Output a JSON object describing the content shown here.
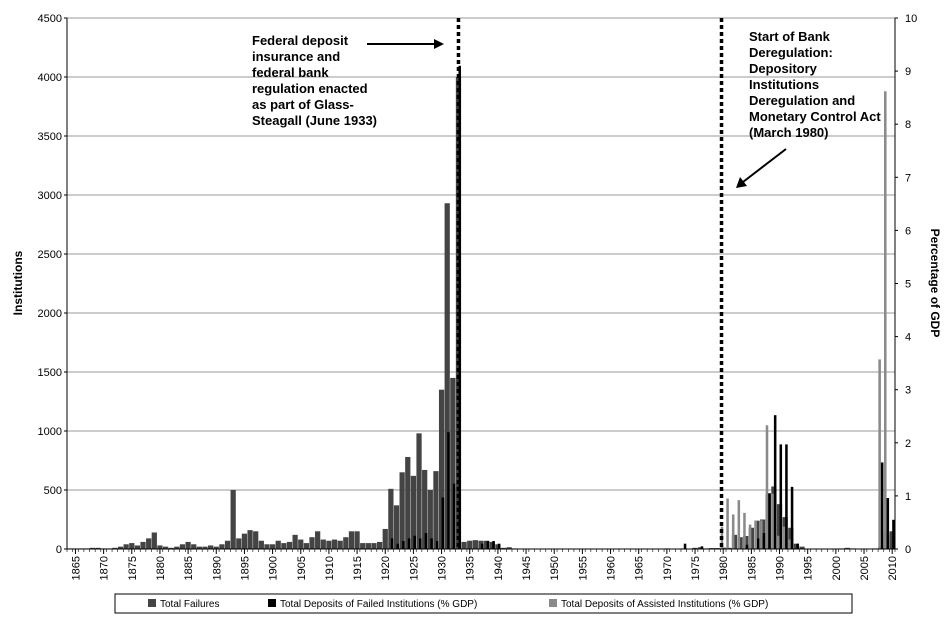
{
  "chart_data": {
    "type": "bar",
    "title": "",
    "ylabel_left": "Institutions",
    "ylabel_right": "Percentage of GDP",
    "x_range": [
      1864,
      2011
    ],
    "y_left_range": [
      0,
      4500
    ],
    "y_right_range": [
      0,
      10
    ],
    "y_left_ticks": [
      "0",
      "500",
      "1000",
      "1500",
      "2000",
      "2500",
      "3000",
      "3500",
      "4000",
      "4500"
    ],
    "y_right_ticks": [
      "0",
      "1",
      "2",
      "3",
      "4",
      "5",
      "6",
      "7",
      "8",
      "9",
      "10"
    ],
    "x_ticks": [
      "1865",
      "1870",
      "1875",
      "1880",
      "1885",
      "1890",
      "1895",
      "1900",
      "1905",
      "1910",
      "1915",
      "1920",
      "1925",
      "1930",
      "1935",
      "1940",
      "1945",
      "1950",
      "1955",
      "1960",
      "1965",
      "1970",
      "1975",
      "1980",
      "1985",
      "1990",
      "1995",
      "2000",
      "2005",
      "2010"
    ],
    "grid": "horizontal",
    "legend_position": "bottom",
    "colors": {
      "failures": "#444444",
      "failed_deposits": "#000000",
      "assisted_deposits": "#8a8a8a",
      "grid": "#999999"
    },
    "series": [
      {
        "name": "Total Failures",
        "axis": "left",
        "x": [
          1864,
          1865,
          1866,
          1867,
          1868,
          1869,
          1870,
          1871,
          1872,
          1873,
          1874,
          1875,
          1876,
          1877,
          1878,
          1879,
          1880,
          1881,
          1882,
          1883,
          1884,
          1885,
          1886,
          1887,
          1888,
          1889,
          1890,
          1891,
          1892,
          1893,
          1894,
          1895,
          1896,
          1897,
          1898,
          1899,
          1900,
          1901,
          1902,
          1903,
          1904,
          1905,
          1906,
          1907,
          1908,
          1909,
          1910,
          1911,
          1912,
          1913,
          1914,
          1915,
          1916,
          1917,
          1918,
          1919,
          1920,
          1921,
          1922,
          1923,
          1924,
          1925,
          1926,
          1927,
          1928,
          1929,
          1930,
          1931,
          1932,
          1933,
          1934,
          1935,
          1936,
          1937,
          1938,
          1939,
          1940,
          1941,
          1942,
          1943,
          1970,
          1973,
          1975,
          1976,
          1977,
          1978,
          1979,
          1980,
          1981,
          1982,
          1983,
          1984,
          1985,
          1986,
          1987,
          1988,
          1989,
          1990,
          1991,
          1992,
          1993,
          1994,
          2001,
          2002,
          2003,
          2007,
          2008,
          2009,
          2010
        ],
        "values": [
          5,
          5,
          5,
          5,
          10,
          10,
          5,
          5,
          10,
          20,
          40,
          50,
          30,
          60,
          90,
          140,
          30,
          20,
          10,
          20,
          40,
          60,
          40,
          20,
          20,
          30,
          20,
          40,
          70,
          500,
          90,
          130,
          160,
          150,
          70,
          40,
          40,
          70,
          50,
          60,
          120,
          80,
          50,
          100,
          150,
          80,
          70,
          80,
          70,
          100,
          150,
          150,
          50,
          50,
          50,
          60,
          170,
          510,
          370,
          650,
          780,
          620,
          980,
          670,
          500,
          660,
          1350,
          2930,
          1450,
          4000,
          60,
          70,
          75,
          70,
          70,
          60,
          40,
          10,
          15,
          5,
          5,
          5,
          10,
          15,
          5,
          8,
          8,
          12,
          10,
          120,
          100,
          110,
          180,
          240,
          250,
          470,
          530,
          380,
          270,
          180,
          45,
          20,
          5,
          10,
          5,
          5,
          25,
          140,
          150
        ]
      },
      {
        "name": "Total Deposits of Failed Institutions (% GDP)",
        "axis": "right",
        "x": [
          1921,
          1922,
          1923,
          1924,
          1925,
          1926,
          1927,
          1928,
          1929,
          1930,
          1931,
          1932,
          1933,
          1937,
          1938,
          1939,
          1940,
          1973,
          1976,
          1984,
          1986,
          1987,
          1988,
          1989,
          1990,
          1991,
          1992,
          1993,
          2008,
          2009,
          2010
        ],
        "values": [
          0.2,
          0.1,
          0.15,
          0.2,
          0.25,
          0.2,
          0.3,
          0.2,
          0.15,
          0.97,
          2.2,
          1.23,
          9.1,
          0.1,
          0.15,
          0.15,
          0.1,
          0.1,
          0.05,
          0.08,
          0.2,
          0.3,
          1.05,
          2.52,
          1.97,
          1.97,
          1.17,
          0.1,
          1.63,
          0.96,
          0.55
        ]
      },
      {
        "name": "Total Deposits of Assisted Institutions (% GDP)",
        "axis": "right",
        "x": [
          1980,
          1981,
          1982,
          1983,
          1984,
          1985,
          1986,
          1987,
          1988,
          1989,
          1990,
          1991,
          1992,
          2008,
          2009
        ],
        "values": [
          0.42,
          0.95,
          0.65,
          0.92,
          0.68,
          0.46,
          0.53,
          0.54,
          2.33,
          1.04,
          0.25,
          0.42,
          0.18,
          3.57,
          8.62
        ]
      }
    ],
    "annotations": [
      {
        "lines": [
          "Federal deposit",
          "insurance and",
          "federal bank",
          "regulation enacted",
          "as part of Glass-",
          "Steagall (June 1933)"
        ],
        "at_year": 1933.5
      },
      {
        "lines": [
          "Start of Bank",
          "Deregulation:",
          "Depository",
          "Institutions",
          "Deregulation and",
          "Monetary Control Act",
          "(March 1980)"
        ],
        "at_year": 1980.2
      }
    ]
  }
}
